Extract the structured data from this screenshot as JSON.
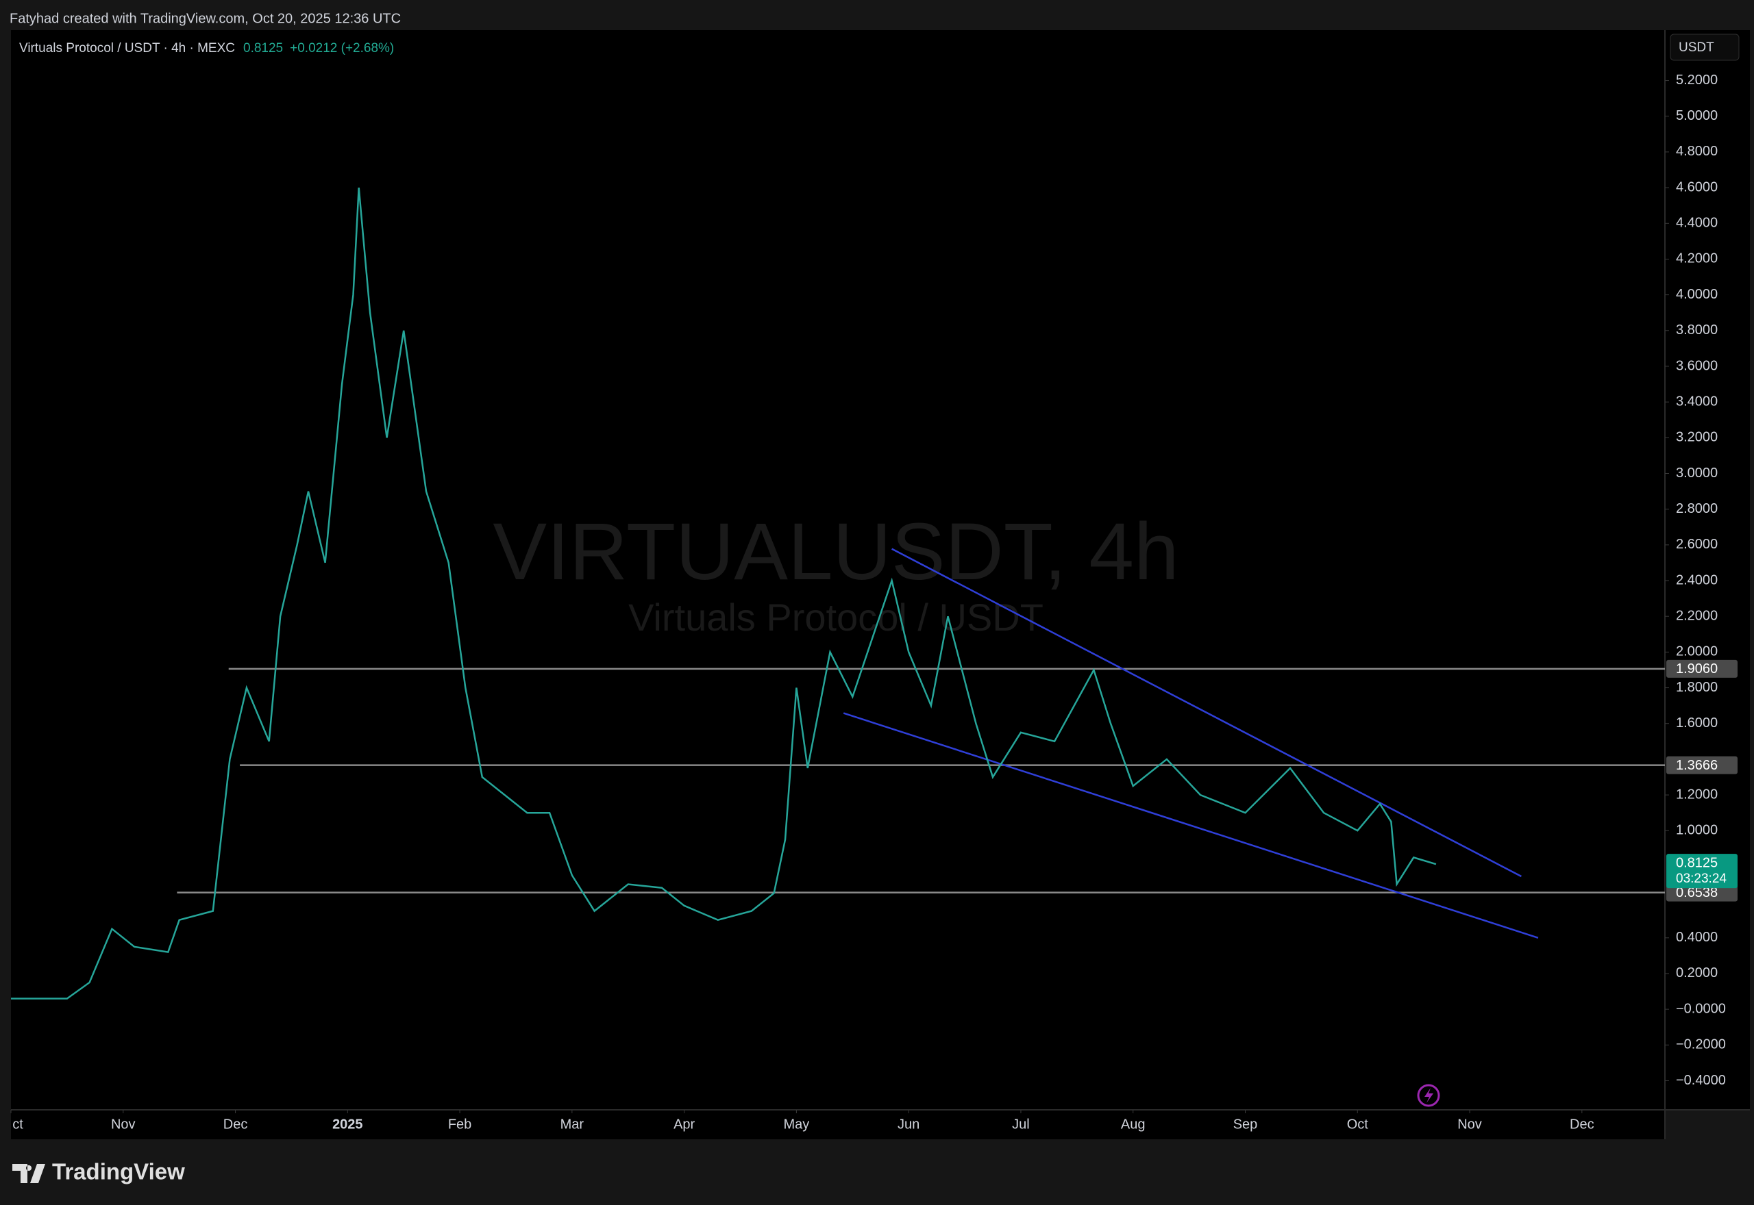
{
  "header": {
    "attribution": "Fatyhad created with TradingView.com, Oct 20, 2025 12:36 UTC"
  },
  "toolbar": {
    "currency_button": "USDT"
  },
  "logo": "TradingView",
  "chart_data": {
    "type": "line",
    "title": "Virtuals Protocol / USDT · 4h · MEXC",
    "last_price": 0.8125,
    "change": "+0.0212 (+2.68%)",
    "countdown": "03:23:24",
    "watermark": "VIRTUALUSDT, 4h",
    "watermark_subtitle": "Virtuals Protocol / USDT",
    "color": "#26a69a",
    "x": [
      0,
      0.5,
      0.7,
      0.9,
      1.1,
      1.4,
      1.5,
      1.8,
      1.95,
      2.1,
      2.3,
      2.4,
      2.55,
      2.65,
      2.8,
      2.95,
      3.05,
      3.1,
      3.2,
      3.35,
      3.5,
      3.7,
      3.9,
      4.05,
      4.2,
      4.4,
      4.6,
      4.8,
      5.0,
      5.2,
      5.5,
      5.8,
      6.0,
      6.3,
      6.6,
      6.8,
      6.9,
      7.0,
      7.1,
      7.3,
      7.5,
      7.85,
      8.0,
      8.2,
      8.35,
      8.6,
      8.75,
      9.0,
      9.3,
      9.65,
      9.8,
      10.0,
      10.3,
      10.6,
      11.0,
      11.4,
      11.7,
      12.0,
      12.2,
      12.3,
      12.35,
      12.5,
      12.7
    ],
    "values": [
      0.06,
      0.06,
      0.15,
      0.45,
      0.35,
      0.32,
      0.5,
      0.55,
      1.4,
      1.8,
      1.5,
      2.2,
      2.6,
      2.9,
      2.5,
      3.5,
      4.0,
      4.6,
      3.9,
      3.2,
      3.8,
      2.9,
      2.5,
      1.8,
      1.3,
      1.2,
      1.1,
      1.1,
      0.75,
      0.55,
      0.7,
      0.68,
      0.58,
      0.5,
      0.55,
      0.65,
      0.95,
      1.8,
      1.35,
      2.0,
      1.75,
      2.4,
      2.0,
      1.7,
      2.2,
      1.6,
      1.3,
      1.55,
      1.5,
      1.9,
      1.6,
      1.25,
      1.4,
      1.2,
      1.1,
      1.35,
      1.1,
      1.0,
      1.15,
      1.05,
      0.7,
      0.85,
      0.8125
    ],
    "levels": [
      {
        "value": 1.906,
        "label": "1.9060",
        "start": 1.94
      },
      {
        "value": 1.3666,
        "label": "1.3666",
        "start": 2.04
      },
      {
        "value": 0.6538,
        "label": "0.6538",
        "start": 1.48
      }
    ],
    "trendlines": [
      {
        "x": [
          7.85,
          13.46
        ],
        "y": [
          2.578,
          0.744
        ]
      },
      {
        "x": [
          7.42,
          13.61
        ],
        "y": [
          1.658,
          0.4
        ]
      }
    ],
    "xlim": [
      0,
      14.74
    ],
    "ylim": [
      -0.563,
      5.482
    ],
    "xticks": [
      {
        "value": 0,
        "label": "ct"
      },
      {
        "value": 1,
        "label": "Nov"
      },
      {
        "value": 2,
        "label": "Dec"
      },
      {
        "value": 3,
        "label": "2025"
      },
      {
        "value": 4,
        "label": "Feb"
      },
      {
        "value": 5,
        "label": "Mar"
      },
      {
        "value": 6,
        "label": "Apr"
      },
      {
        "value": 7,
        "label": "May"
      },
      {
        "value": 8,
        "label": "Jun"
      },
      {
        "value": 9,
        "label": "Jul"
      },
      {
        "value": 10,
        "label": "Aug"
      },
      {
        "value": 11,
        "label": "Sep"
      },
      {
        "value": 12,
        "label": "Oct"
      },
      {
        "value": 13,
        "label": "Nov"
      },
      {
        "value": 14,
        "label": "Dec"
      }
    ],
    "yticks": [
      {
        "value": 5.2,
        "label": "5.2000"
      },
      {
        "value": 5.0,
        "label": "5.0000"
      },
      {
        "value": 4.8,
        "label": "4.8000"
      },
      {
        "value": 4.6,
        "label": "4.6000"
      },
      {
        "value": 4.4,
        "label": "4.4000"
      },
      {
        "value": 4.2,
        "label": "4.2000"
      },
      {
        "value": 4.0,
        "label": "4.0000"
      },
      {
        "value": 3.8,
        "label": "3.8000"
      },
      {
        "value": 3.6,
        "label": "3.6000"
      },
      {
        "value": 3.4,
        "label": "3.4000"
      },
      {
        "value": 3.2,
        "label": "3.2000"
      },
      {
        "value": 3.0,
        "label": "3.0000"
      },
      {
        "value": 2.8,
        "label": "2.8000"
      },
      {
        "value": 2.6,
        "label": "2.6000"
      },
      {
        "value": 2.4,
        "label": "2.4000"
      },
      {
        "value": 2.2,
        "label": "2.2000"
      },
      {
        "value": 2.0,
        "label": "2.0000"
      },
      {
        "value": 1.8,
        "label": "1.8000"
      },
      {
        "value": 1.6,
        "label": "1.6000"
      },
      {
        "value": 1.2,
        "label": "1.2000"
      },
      {
        "value": 1.0,
        "label": "1.0000"
      },
      {
        "value": 0.4,
        "label": "0.4000"
      },
      {
        "value": 0.2,
        "label": "0.2000"
      },
      {
        "value": 0,
        "label": "−0.0000"
      },
      {
        "value": -0.2,
        "label": "−0.2000"
      },
      {
        "value": -0.4,
        "label": "−0.4000"
      }
    ]
  }
}
